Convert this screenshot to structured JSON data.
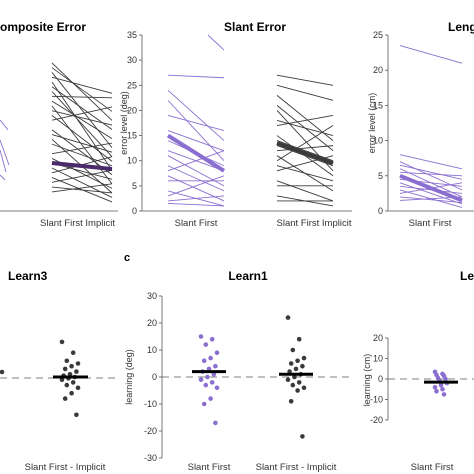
{
  "colors": {
    "purple": "#8a6fd1",
    "purple_dark": "#7b5cc4",
    "dark": "#3a3a3a",
    "black": "#000000",
    "axis": "#555555"
  },
  "top_row": {
    "composite": {
      "title": "omposite Error",
      "xlabel_right": "Slant First Implicit"
    },
    "slant": {
      "title": "Slant Error",
      "ylabel": "error level (deg)",
      "yticks": [
        "0",
        "5",
        "10",
        "15",
        "20",
        "25",
        "30",
        "35"
      ],
      "xlabels": [
        "Slant First",
        "Slant First Implicit"
      ]
    },
    "length": {
      "title": "Leng",
      "ylabel": "error level (cm)",
      "yticks": [
        "0",
        "5",
        "10",
        "15",
        "20",
        "25"
      ],
      "xlabels": [
        "Slant First"
      ]
    }
  },
  "bottom_row": {
    "learn3": {
      "title": "Learn3",
      "xlabel_right": "Slant First - Implicit"
    },
    "learn1": {
      "panel_letter": "c",
      "title": "Learn1",
      "ylabel": "learning (deg)",
      "yticks": [
        "30",
        "20",
        "10",
        "0",
        "-10",
        "-20",
        "-30"
      ],
      "xlabels": [
        "Slant First",
        "Slant First - Implicit"
      ]
    },
    "learn_cm": {
      "title": "Le",
      "ylabel": "learning (cm)",
      "yticks": [
        "20",
        "10",
        "0",
        "-10",
        "-20"
      ],
      "xlabels": [
        "Slant First"
      ]
    }
  },
  "chart_data": [
    {
      "type": "line",
      "title": "Slant Error",
      "ylabel": "error level (deg)",
      "ylim": [
        0,
        35
      ],
      "categories": [
        "Slant First",
        "Slant First Implicit"
      ],
      "series": [
        {
          "values": [
            [
              27,
              26.5
            ],
            [
              24,
              14
            ],
            [
              22,
              10
            ],
            [
              19,
              16
            ],
            [
              16,
              12
            ],
            [
              14,
              9
            ],
            [
              12,
              8
            ],
            [
              11,
              5
            ],
            [
              9,
              4
            ],
            [
              8,
              12
            ],
            [
              7,
              2
            ],
            [
              6,
              6
            ],
            [
              4,
              1
            ],
            [
              3,
              7
            ],
            [
              2,
              3
            ],
            [
              1.5,
              1
            ]
          ],
          "mean": [
            15,
            8
          ]
        },
        {
          "values": [
            [
              27,
              25
            ],
            [
              25,
              22
            ],
            [
              23,
              14
            ],
            [
              21,
              12
            ],
            [
              20,
              8
            ],
            [
              18,
              15
            ],
            [
              17,
              19
            ],
            [
              15,
              7
            ],
            [
              14,
              10
            ],
            [
              13,
              9
            ],
            [
              12,
              13
            ],
            [
              11,
              4
            ],
            [
              10,
              17
            ],
            [
              9,
              6
            ],
            [
              8,
              11
            ],
            [
              6,
              2
            ],
            [
              5,
              5
            ],
            [
              3,
              1
            ],
            [
              2,
              2
            ]
          ],
          "mean": [
            13.5,
            9.5
          ]
        }
      ]
    },
    {
      "type": "line",
      "title": "Leng",
      "ylabel": "error level (cm)",
      "ylim": [
        0,
        25
      ],
      "categories": [
        "Slant First"
      ],
      "series": [
        {
          "values": [
            [
              8,
              6
            ],
            [
              7,
              3
            ],
            [
              6.5,
              4.5
            ],
            [
              6,
              2
            ],
            [
              5.5,
              5
            ],
            [
              5,
              1.5
            ],
            [
              4.5,
              3.5
            ],
            [
              4,
              1
            ],
            [
              3.5,
              2.5
            ],
            [
              3,
              0.5
            ],
            [
              2.5,
              4
            ],
            [
              2,
              1.2
            ],
            [
              1.5,
              2
            ],
            [
              23.5,
              21
            ]
          ],
          "mean": [
            5,
            1.5
          ]
        }
      ]
    },
    {
      "type": "scatter",
      "title": "Learn1",
      "ylabel": "learning (deg)",
      "ylim": [
        -30,
        30
      ],
      "categories": [
        "Slant First",
        "Slant First - Implicit"
      ],
      "series": [
        {
          "values": [
            15,
            14,
            12,
            9,
            7,
            6,
            4,
            3,
            2,
            1,
            0,
            -1,
            -2,
            -3,
            -4,
            -8,
            -10,
            -17
          ],
          "mean": 2
        },
        {
          "values": [
            22,
            14,
            10,
            7,
            6,
            5,
            4,
            3,
            2,
            1,
            0,
            -1,
            -2,
            -3,
            -4,
            -5,
            -9,
            -22
          ],
          "mean": 1
        }
      ]
    },
    {
      "type": "scatter",
      "title": "Le",
      "ylabel": "learning (cm)",
      "ylim": [
        -20,
        20
      ],
      "categories": [
        "Slant First"
      ],
      "series": [
        {
          "values": [
            3.5,
            2.5,
            2,
            1.5,
            0.5,
            0,
            -1,
            -2,
            -3,
            -4,
            -5,
            -6,
            -7.5
          ],
          "mean": -1.5
        }
      ]
    },
    {
      "type": "scatter",
      "title": "Learn3",
      "categories": [
        "Slant First - Implicit"
      ],
      "series": [
        {
          "values": [
            13,
            9,
            6,
            5,
            4,
            3,
            2,
            1,
            0.5,
            0,
            -0.5,
            -1,
            -2,
            -3,
            -4,
            -6,
            -8,
            -14
          ],
          "mean": 0
        }
      ]
    }
  ]
}
